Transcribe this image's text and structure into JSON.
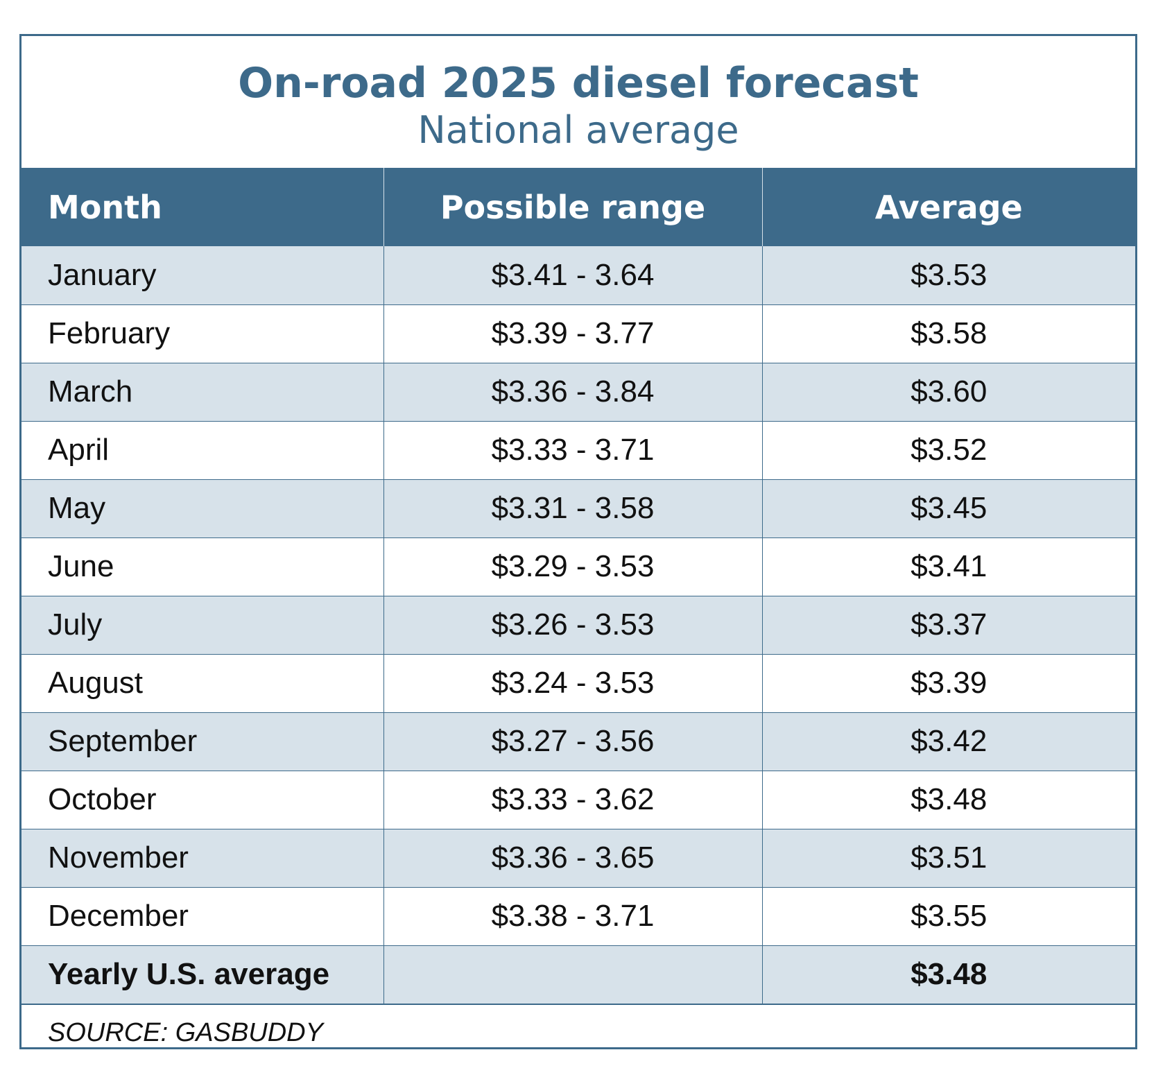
{
  "chart_data": {
    "type": "table",
    "title": "On-road 2025 diesel forecast",
    "subtitle": "National average",
    "columns": [
      "Month",
      "Possible range",
      "Average"
    ],
    "rows": [
      {
        "month": "January",
        "range": "$3.41 - 3.64",
        "average": "$3.53"
      },
      {
        "month": "February",
        "range": "$3.39 - 3.77",
        "average": "$3.58"
      },
      {
        "month": "March",
        "range": "$3.36 - 3.84",
        "average": "$3.60"
      },
      {
        "month": "April",
        "range": "$3.33 - 3.71",
        "average": "$3.52"
      },
      {
        "month": "May",
        "range": "$3.31 - 3.58",
        "average": "$3.45"
      },
      {
        "month": "June",
        "range": "$3.29 - 3.53",
        "average": "$3.41"
      },
      {
        "month": "July",
        "range": "$3.26 - 3.53",
        "average": "$3.37"
      },
      {
        "month": "August",
        "range": "$3.24 - 3.53",
        "average": "$3.39"
      },
      {
        "month": "September",
        "range": "$3.27 - 3.56",
        "average": "$3.42"
      },
      {
        "month": "October",
        "range": "$3.33 - 3.62",
        "average": "$3.48"
      },
      {
        "month": "November",
        "range": "$3.36 - 3.65",
        "average": "$3.51"
      },
      {
        "month": "December",
        "range": "$3.38 - 3.71",
        "average": "$3.55"
      }
    ],
    "total": {
      "label": "Yearly U.S. average",
      "range": "",
      "average": "$3.48"
    },
    "source": "SOURCE: GASBUDDY"
  },
  "colors": {
    "accent": "#3d6a8a",
    "row_shade": "#d7e2ea"
  }
}
